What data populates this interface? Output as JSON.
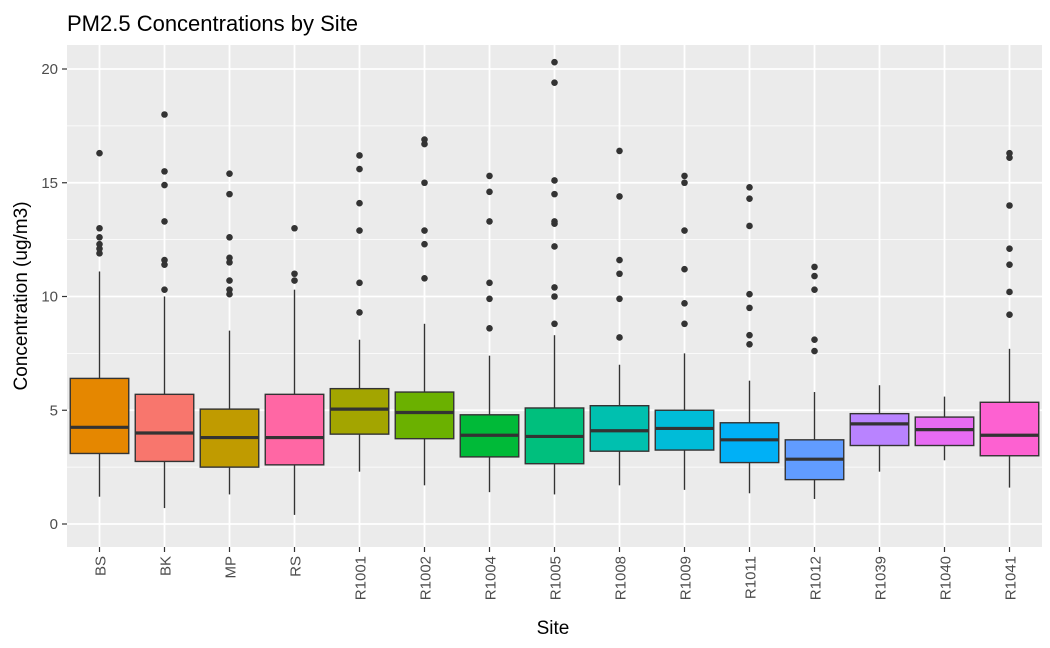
{
  "chart_data": {
    "type": "box",
    "title": "PM2.5 Concentrations by Site",
    "xlabel": "Site",
    "ylabel": "Concentration (ug/m3)",
    "ylim": [
      -1,
      21
    ],
    "yticks": [
      0,
      5,
      10,
      15,
      20
    ],
    "grid": true,
    "legend": "none",
    "categories": [
      "BS",
      "BK",
      "MP",
      "RS",
      "R1001",
      "R1002",
      "R1004",
      "R1005",
      "R1008",
      "R1009",
      "R1011",
      "R1012",
      "R1039",
      "R1040",
      "R1041"
    ],
    "boxes": [
      {
        "site": "BS",
        "color": "#E58700",
        "min": 1.2,
        "q1": 3.1,
        "median": 4.25,
        "q3": 6.4,
        "max": 11.1,
        "outliers": [
          11.9,
          12.1,
          12.3,
          12.6,
          13.0,
          16.3
        ]
      },
      {
        "site": "BK",
        "color": "#F8766D",
        "min": 0.7,
        "q1": 2.75,
        "median": 4.0,
        "q3": 5.7,
        "max": 10.0,
        "outliers": [
          10.3,
          11.4,
          11.6,
          13.3,
          14.9,
          15.5,
          18.0
        ]
      },
      {
        "site": "MP",
        "color": "#C09B00",
        "min": 1.3,
        "q1": 2.5,
        "median": 3.8,
        "q3": 5.05,
        "max": 8.5,
        "outliers": [
          10.1,
          10.3,
          10.7,
          11.5,
          11.7,
          12.6,
          14.5,
          15.4
        ]
      },
      {
        "site": "RS",
        "color": "#FF67A4",
        "min": 0.4,
        "q1": 2.6,
        "median": 3.8,
        "q3": 5.7,
        "max": 10.3,
        "outliers": [
          10.7,
          11.0,
          13.0
        ]
      },
      {
        "site": "R1001",
        "color": "#A3A500",
        "min": 2.3,
        "q1": 3.95,
        "median": 5.05,
        "q3": 5.95,
        "max": 8.1,
        "outliers": [
          9.3,
          10.6,
          12.9,
          14.1,
          15.6,
          16.2
        ]
      },
      {
        "site": "R1002",
        "color": "#6BB100",
        "min": 1.7,
        "q1": 3.75,
        "median": 4.9,
        "q3": 5.8,
        "max": 8.8,
        "outliers": [
          10.8,
          12.3,
          12.9,
          15.0,
          16.7,
          16.9
        ]
      },
      {
        "site": "R1004",
        "color": "#00BA38",
        "min": 1.4,
        "q1": 2.95,
        "median": 3.9,
        "q3": 4.8,
        "max": 7.4,
        "outliers": [
          8.6,
          9.9,
          10.6,
          13.3,
          14.6,
          15.3
        ]
      },
      {
        "site": "R1005",
        "color": "#00BF7D",
        "min": 1.3,
        "q1": 2.65,
        "median": 3.85,
        "q3": 5.1,
        "max": 8.3,
        "outliers": [
          8.8,
          10.0,
          10.4,
          12.2,
          13.2,
          13.3,
          14.5,
          15.1,
          19.4,
          20.3
        ]
      },
      {
        "site": "R1008",
        "color": "#00C0AF",
        "min": 1.7,
        "q1": 3.2,
        "median": 4.1,
        "q3": 5.2,
        "max": 7.0,
        "outliers": [
          8.2,
          9.9,
          11.0,
          11.6,
          14.4,
          16.4
        ]
      },
      {
        "site": "R1009",
        "color": "#00BCD8",
        "min": 1.5,
        "q1": 3.25,
        "median": 4.2,
        "q3": 5.0,
        "max": 7.5,
        "outliers": [
          8.8,
          9.7,
          11.2,
          12.9,
          15.0,
          15.3
        ]
      },
      {
        "site": "R1011",
        "color": "#00B0F6",
        "min": 1.35,
        "q1": 2.7,
        "median": 3.7,
        "q3": 4.45,
        "max": 6.3,
        "outliers": [
          7.9,
          8.3,
          9.5,
          10.1,
          13.1,
          14.3,
          14.8
        ]
      },
      {
        "site": "R1012",
        "color": "#619CFF",
        "min": 1.1,
        "q1": 1.95,
        "median": 2.85,
        "q3": 3.7,
        "max": 5.8,
        "outliers": [
          7.6,
          8.1,
          10.3,
          10.9,
          11.3
        ]
      },
      {
        "site": "R1039",
        "color": "#B983FF",
        "min": 2.3,
        "q1": 3.45,
        "median": 4.4,
        "q3": 4.85,
        "max": 6.1,
        "outliers": []
      },
      {
        "site": "R1040",
        "color": "#E76BF3",
        "min": 2.8,
        "q1": 3.45,
        "median": 4.15,
        "q3": 4.7,
        "max": 5.6,
        "outliers": []
      },
      {
        "site": "R1041",
        "color": "#FD61D1",
        "min": 1.6,
        "q1": 3.0,
        "median": 3.9,
        "q3": 5.35,
        "max": 7.7,
        "outliers": [
          9.2,
          10.2,
          11.4,
          12.1,
          14.0,
          16.1,
          16.3
        ]
      }
    ]
  },
  "colors": {
    "panel": "#EBEBEB",
    "grid": "#FFFFFF",
    "box_line": "#333333",
    "outlier": "#333333"
  }
}
